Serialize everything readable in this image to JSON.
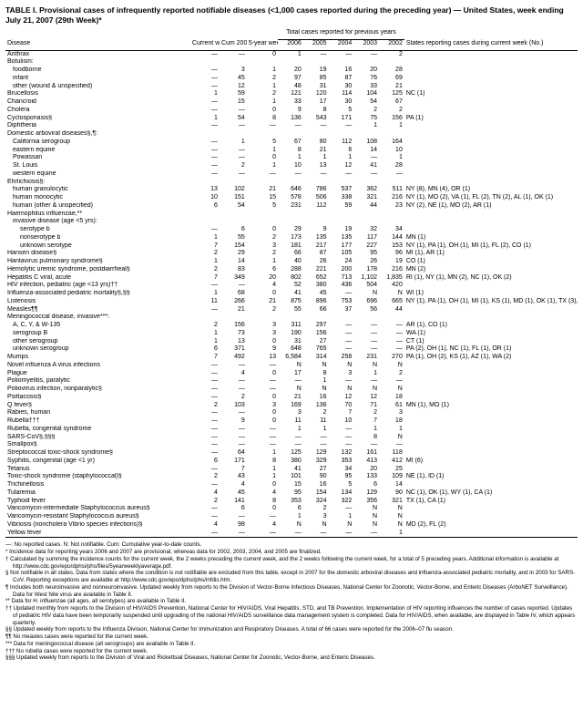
{
  "title": "TABLE I. Provisional cases of infrequently reported notifiable diseases (<1,000 cases reported during the preceding year) — United States, week ending July 21, 2007 (29th Week)*",
  "headers": {
    "disease": "Disease",
    "current_week": "Current week",
    "cum_2007": "Cum 2007",
    "avg": "5-year weekly average†",
    "totals_group": "Total cases reported for previous years",
    "y2006": "2006",
    "y2005": "2005",
    "y2004": "2004",
    "y2003": "2003",
    "y2002": "2002",
    "states": "States reporting cases during current week (No.)"
  },
  "rows": [
    {
      "d": "Anthrax",
      "i": 0,
      "cw": "—",
      "cum": "—",
      "avg": "0",
      "y6": "1",
      "y5": "—",
      "y4": "—",
      "y3": "—",
      "y2": "2",
      "s": ""
    },
    {
      "d": "Botulism:",
      "i": 0,
      "cw": "",
      "cum": "",
      "avg": "",
      "y6": "",
      "y5": "",
      "y4": "",
      "y3": "",
      "y2": "",
      "s": ""
    },
    {
      "d": "foodborne",
      "i": 1,
      "cw": "—",
      "cum": "3",
      "avg": "1",
      "y6": "20",
      "y5": "19",
      "y4": "16",
      "y3": "20",
      "y2": "28",
      "s": ""
    },
    {
      "d": "infant",
      "i": 1,
      "cw": "—",
      "cum": "45",
      "avg": "2",
      "y6": "97",
      "y5": "85",
      "y4": "87",
      "y3": "76",
      "y2": "69",
      "s": ""
    },
    {
      "d": "other (wound & unspecified)",
      "i": 1,
      "cw": "—",
      "cum": "12",
      "avg": "1",
      "y6": "48",
      "y5": "31",
      "y4": "30",
      "y3": "33",
      "y2": "21",
      "s": ""
    },
    {
      "d": "Brucellosis",
      "i": 0,
      "cw": "1",
      "cum": "59",
      "avg": "2",
      "y6": "121",
      "y5": "120",
      "y4": "114",
      "y3": "104",
      "y2": "125",
      "s": "NC (1)"
    },
    {
      "d": "Chancroid",
      "i": 0,
      "cw": "—",
      "cum": "15",
      "avg": "1",
      "y6": "33",
      "y5": "17",
      "y4": "30",
      "y3": "54",
      "y2": "67",
      "s": ""
    },
    {
      "d": "Cholera",
      "i": 0,
      "cw": "—",
      "cum": "—",
      "avg": "0",
      "y6": "9",
      "y5": "8",
      "y4": "5",
      "y3": "2",
      "y2": "2",
      "s": ""
    },
    {
      "d": "Cyclosporiasis§",
      "i": 0,
      "cw": "1",
      "cum": "54",
      "avg": "8",
      "y6": "136",
      "y5": "543",
      "y4": "171",
      "y3": "75",
      "y2": "156",
      "s": "PA (1)"
    },
    {
      "d": "Diphtheria",
      "i": 0,
      "cw": "—",
      "cum": "—",
      "avg": "—",
      "y6": "—",
      "y5": "—",
      "y4": "—",
      "y3": "1",
      "y2": "1",
      "s": ""
    },
    {
      "d": "Domestic arboviral diseases§,¶:",
      "i": 0,
      "cw": "",
      "cum": "",
      "avg": "",
      "y6": "",
      "y5": "",
      "y4": "",
      "y3": "",
      "y2": "",
      "s": ""
    },
    {
      "d": "California serogroup",
      "i": 1,
      "cw": "—",
      "cum": "1",
      "avg": "5",
      "y6": "67",
      "y5": "80",
      "y4": "112",
      "y3": "108",
      "y2": "164",
      "s": ""
    },
    {
      "d": "eastern equine",
      "i": 1,
      "cw": "—",
      "cum": "—",
      "avg": "1",
      "y6": "8",
      "y5": "21",
      "y4": "6",
      "y3": "14",
      "y2": "10",
      "s": ""
    },
    {
      "d": "Powassan",
      "i": 1,
      "cw": "—",
      "cum": "—",
      "avg": "0",
      "y6": "1",
      "y5": "1",
      "y4": "1",
      "y3": "—",
      "y2": "1",
      "s": ""
    },
    {
      "d": "St. Louis",
      "i": 1,
      "cw": "—",
      "cum": "2",
      "avg": "1",
      "y6": "10",
      "y5": "13",
      "y4": "12",
      "y3": "41",
      "y2": "28",
      "s": ""
    },
    {
      "d": "western equine",
      "i": 1,
      "cw": "—",
      "cum": "—",
      "avg": "—",
      "y6": "—",
      "y5": "—",
      "y4": "—",
      "y3": "—",
      "y2": "—",
      "s": ""
    },
    {
      "d": "Ehrlichiosis§:",
      "i": 0,
      "cw": "",
      "cum": "",
      "avg": "",
      "y6": "",
      "y5": "",
      "y4": "",
      "y3": "",
      "y2": "",
      "s": ""
    },
    {
      "d": "human granulocytic",
      "i": 1,
      "cw": "13",
      "cum": "102",
      "avg": "21",
      "y6": "646",
      "y5": "786",
      "y4": "537",
      "y3": "362",
      "y2": "511",
      "s": "NY (8), MN (4), OR (1)"
    },
    {
      "d": "human monocytic",
      "i": 1,
      "cw": "10",
      "cum": "151",
      "avg": "15",
      "y6": "578",
      "y5": "506",
      "y4": "338",
      "y3": "321",
      "y2": "216",
      "s": "NY (1), MO (2), VA (1), FL (2), TN (2), AL (1), OK (1)"
    },
    {
      "d": "human (other & unspecified)",
      "i": 1,
      "cw": "6",
      "cum": "54",
      "avg": "5",
      "y6": "231",
      "y5": "112",
      "y4": "59",
      "y3": "44",
      "y2": "23",
      "s": "NY (2), NE (1), MO (2), AR (1)"
    },
    {
      "d": "Haemophilus influenzae,**",
      "i": 0,
      "cw": "",
      "cum": "",
      "avg": "",
      "y6": "",
      "y5": "",
      "y4": "",
      "y3": "",
      "y2": "",
      "s": ""
    },
    {
      "d": "invasive disease (age <5 yrs):",
      "i": 1,
      "cw": "",
      "cum": "",
      "avg": "",
      "y6": "",
      "y5": "",
      "y4": "",
      "y3": "",
      "y2": "",
      "s": ""
    },
    {
      "d": "serotype b",
      "i": 2,
      "cw": "—",
      "cum": "6",
      "avg": "0",
      "y6": "29",
      "y5": "9",
      "y4": "19",
      "y3": "32",
      "y2": "34",
      "s": ""
    },
    {
      "d": "nonserotype b",
      "i": 2,
      "cw": "1",
      "cum": "55",
      "avg": "2",
      "y6": "173",
      "y5": "135",
      "y4": "135",
      "y3": "117",
      "y2": "144",
      "s": "MN (1)"
    },
    {
      "d": "unknown serotype",
      "i": 2,
      "cw": "7",
      "cum": "154",
      "avg": "3",
      "y6": "181",
      "y5": "217",
      "y4": "177",
      "y3": "227",
      "y2": "153",
      "s": "NY (1), PA (1), OH (1), MI (1), FL (2), CO (1)"
    },
    {
      "d": "Hansen disease§",
      "i": 0,
      "cw": "2",
      "cum": "29",
      "avg": "2",
      "y6": "66",
      "y5": "87",
      "y4": "105",
      "y3": "95",
      "y2": "96",
      "s": "MI (1), AR (1)"
    },
    {
      "d": "Hantavirus pulmonary syndrome§",
      "i": 0,
      "cw": "1",
      "cum": "14",
      "avg": "1",
      "y6": "40",
      "y5": "26",
      "y4": "24",
      "y3": "26",
      "y2": "19",
      "s": "CO (1)"
    },
    {
      "d": "Hemolytic uremic syndrome, postdiarrheal§",
      "i": 0,
      "cw": "2",
      "cum": "83",
      "avg": "6",
      "y6": "288",
      "y5": "221",
      "y4": "200",
      "y3": "178",
      "y2": "216",
      "s": "MN (2)"
    },
    {
      "d": "Hepatitis C viral, acute",
      "i": 0,
      "cw": "7",
      "cum": "349",
      "avg": "20",
      "y6": "802",
      "y5": "652",
      "y4": "713",
      "y3": "1,102",
      "y2": "1,835",
      "s": "RI (1), NY (1), MN (2), NC (1), OK (2)"
    },
    {
      "d": "HIV infection, pediatric (age <13 yrs)††",
      "i": 0,
      "cw": "—",
      "cum": "—",
      "avg": "4",
      "y6": "52",
      "y5": "380",
      "y4": "436",
      "y3": "504",
      "y2": "420",
      "s": ""
    },
    {
      "d": "Influenza-associated pediatric mortality§,§§",
      "i": 0,
      "cw": "1",
      "cum": "68",
      "avg": "0",
      "y6": "41",
      "y5": "45",
      "y4": "—",
      "y3": "N",
      "y2": "N",
      "s": "WI (1)"
    },
    {
      "d": "Listeriosis",
      "i": 0,
      "cw": "11",
      "cum": "266",
      "avg": "21",
      "y6": "875",
      "y5": "896",
      "y4": "753",
      "y3": "696",
      "y2": "665",
      "s": "NY (1), PA (1), OH (1), MI (1), KS (1), MD (1), OK (1), TX (3), AZ (1)"
    },
    {
      "d": "Measles¶¶",
      "i": 0,
      "cw": "—",
      "cum": "21",
      "avg": "2",
      "y6": "55",
      "y5": "66",
      "y4": "37",
      "y3": "56",
      "y2": "44",
      "s": ""
    },
    {
      "d": "Meningococcal disease, invasive***:",
      "i": 0,
      "cw": "",
      "cum": "",
      "avg": "",
      "y6": "",
      "y5": "",
      "y4": "",
      "y3": "",
      "y2": "",
      "s": ""
    },
    {
      "d": "A, C, Y, & W-135",
      "i": 1,
      "cw": "2",
      "cum": "156",
      "avg": "3",
      "y6": "311",
      "y5": "297",
      "y4": "—",
      "y3": "—",
      "y2": "—",
      "s": "AR (1), CO (1)"
    },
    {
      "d": "serogroup B",
      "i": 1,
      "cw": "1",
      "cum": "73",
      "avg": "3",
      "y6": "190",
      "y5": "156",
      "y4": "—",
      "y3": "—",
      "y2": "—",
      "s": "WA (1)"
    },
    {
      "d": "other serogroup",
      "i": 1,
      "cw": "1",
      "cum": "13",
      "avg": "0",
      "y6": "31",
      "y5": "27",
      "y4": "—",
      "y3": "—",
      "y2": "—",
      "s": "CT (1)"
    },
    {
      "d": "unknown serogroup",
      "i": 1,
      "cw": "6",
      "cum": "371",
      "avg": "9",
      "y6": "648",
      "y5": "765",
      "y4": "—",
      "y3": "—",
      "y2": "—",
      "s": "PA (2), OH (1), NC (1), FL (1), OR (1)"
    },
    {
      "d": "Mumps",
      "i": 0,
      "cw": "7",
      "cum": "492",
      "avg": "13",
      "y6": "6,584",
      "y5": "314",
      "y4": "258",
      "y3": "231",
      "y2": "270",
      "s": "PA (1), OH (2), KS (1), AZ (1), WA (2)"
    },
    {
      "d": "Novel influenza A virus infections",
      "i": 0,
      "cw": "—",
      "cum": "—",
      "avg": "—",
      "y6": "N",
      "y5": "N",
      "y4": "N",
      "y3": "N",
      "y2": "N",
      "s": ""
    },
    {
      "d": "Plague",
      "i": 0,
      "cw": "—",
      "cum": "4",
      "avg": "0",
      "y6": "17",
      "y5": "8",
      "y4": "3",
      "y3": "1",
      "y2": "2",
      "s": ""
    },
    {
      "d": "Poliomyelitis, paralytic",
      "i": 0,
      "cw": "—",
      "cum": "—",
      "avg": "—",
      "y6": "—",
      "y5": "1",
      "y4": "—",
      "y3": "—",
      "y2": "—",
      "s": ""
    },
    {
      "d": "Poliovirus infection, nonparalytic§",
      "i": 0,
      "cw": "—",
      "cum": "—",
      "avg": "—",
      "y6": "N",
      "y5": "N",
      "y4": "N",
      "y3": "N",
      "y2": "N",
      "s": ""
    },
    {
      "d": "Psittacosis§",
      "i": 0,
      "cw": "—",
      "cum": "2",
      "avg": "0",
      "y6": "21",
      "y5": "16",
      "y4": "12",
      "y3": "12",
      "y2": "18",
      "s": ""
    },
    {
      "d": "Q fever§",
      "i": 0,
      "cw": "2",
      "cum": "103",
      "avg": "3",
      "y6": "169",
      "y5": "136",
      "y4": "70",
      "y3": "71",
      "y2": "61",
      "s": "MN (1), MO (1)"
    },
    {
      "d": "Rabies, human",
      "i": 0,
      "cw": "—",
      "cum": "—",
      "avg": "0",
      "y6": "3",
      "y5": "2",
      "y4": "7",
      "y3": "2",
      "y2": "3",
      "s": ""
    },
    {
      "d": "Rubella†††",
      "i": 0,
      "cw": "—",
      "cum": "9",
      "avg": "0",
      "y6": "11",
      "y5": "11",
      "y4": "10",
      "y3": "7",
      "y2": "18",
      "s": ""
    },
    {
      "d": "Rubella, congenital syndrome",
      "i": 0,
      "cw": "—",
      "cum": "—",
      "avg": "—",
      "y6": "1",
      "y5": "1",
      "y4": "—",
      "y3": "1",
      "y2": "1",
      "s": ""
    },
    {
      "d": "SARS-CoV§,§§§",
      "i": 0,
      "cw": "—",
      "cum": "—",
      "avg": "—",
      "y6": "—",
      "y5": "—",
      "y4": "—",
      "y3": "8",
      "y2": "N",
      "s": ""
    },
    {
      "d": "Smallpox§",
      "i": 0,
      "cw": "—",
      "cum": "—",
      "avg": "—",
      "y6": "—",
      "y5": "—",
      "y4": "—",
      "y3": "—",
      "y2": "—",
      "s": ""
    },
    {
      "d": "Streptococcal toxic-shock syndrome§",
      "i": 0,
      "cw": "—",
      "cum": "64",
      "avg": "1",
      "y6": "125",
      "y5": "129",
      "y4": "132",
      "y3": "161",
      "y2": "118",
      "s": ""
    },
    {
      "d": "Syphilis, congenital (age <1 yr)",
      "i": 0,
      "cw": "6",
      "cum": "171",
      "avg": "8",
      "y6": "380",
      "y5": "329",
      "y4": "353",
      "y3": "413",
      "y2": "412",
      "s": "MI (6)"
    },
    {
      "d": "Tetanus",
      "i": 0,
      "cw": "—",
      "cum": "7",
      "avg": "1",
      "y6": "41",
      "y5": "27",
      "y4": "34",
      "y3": "20",
      "y2": "25",
      "s": ""
    },
    {
      "d": "Toxic-shock syndrome (staphylococcal)§",
      "i": 0,
      "cw": "2",
      "cum": "43",
      "avg": "1",
      "y6": "101",
      "y5": "90",
      "y4": "95",
      "y3": "133",
      "y2": "109",
      "s": "NE (1), ID (1)"
    },
    {
      "d": "Trichinellosis",
      "i": 0,
      "cw": "—",
      "cum": "4",
      "avg": "0",
      "y6": "15",
      "y5": "16",
      "y4": "5",
      "y3": "6",
      "y2": "14",
      "s": ""
    },
    {
      "d": "Tularemia",
      "i": 0,
      "cw": "4",
      "cum": "45",
      "avg": "4",
      "y6": "95",
      "y5": "154",
      "y4": "134",
      "y3": "129",
      "y2": "90",
      "s": "NC (1), OK (1), WY (1), CA (1)"
    },
    {
      "d": "Typhoid fever",
      "i": 0,
      "cw": "2",
      "cum": "141",
      "avg": "8",
      "y6": "353",
      "y5": "324",
      "y4": "322",
      "y3": "356",
      "y2": "321",
      "s": "TX (1), CA (1)"
    },
    {
      "d": "Vancomycin-intermediate Staphylococcus aureus§",
      "i": 0,
      "cw": "—",
      "cum": "6",
      "avg": "0",
      "y6": "6",
      "y5": "2",
      "y4": "—",
      "y3": "N",
      "y2": "N",
      "s": ""
    },
    {
      "d": "Vancomycin-resistant Staphylococcus aureus§",
      "i": 0,
      "cw": "—",
      "cum": "—",
      "avg": "—",
      "y6": "1",
      "y5": "3",
      "y4": "1",
      "y3": "N",
      "y2": "N",
      "s": ""
    },
    {
      "d": "Vibriosis (noncholera Vibrio species infections)§",
      "i": 0,
      "cw": "4",
      "cum": "98",
      "avg": "4",
      "y6": "N",
      "y5": "N",
      "y4": "N",
      "y3": "N",
      "y2": "N",
      "s": "MD (2), FL (2)"
    },
    {
      "d": "Yellow fever",
      "i": 0,
      "cw": "—",
      "cum": "—",
      "avg": "—",
      "y6": "—",
      "y5": "—",
      "y4": "—",
      "y3": "—",
      "y2": "1",
      "s": ""
    }
  ],
  "footnotes": [
    "—: No reported cases.    N: Not notifiable.    Cum: Cumulative year-to-date counts.",
    "* Incidence data for reporting years 2006 and 2007 are provisional, whereas data for 2002, 2003, 2004, and 2005 are finalized.",
    "† Calculated by summing the incidence counts for the current week, the 2 weeks preceding the current week, and the 2 weeks following the current week, for a total of 5 preceding years. Additional information is available at http://www.cdc.gov/epo/dphsi/phs/files/5yearweeklyaverage.pdf.",
    "§ Not notifiable in all states. Data from states where the condition is not notifiable are excluded from this table, except in 2007 for the domestic arboviral diseases and influenza-associated pediatric mortality, and in 2003 for SARS-CoV. Reporting exceptions are available at http://www.cdc.gov/epo/dphsi/phs/infdis.htm.",
    "¶ Includes both neuroinvasive and nonneuroinvasive. Updated weekly from reports to the Division of Vector-Borne Infectious Diseases, National Center for Zoonotic, Vector-Borne, and Enteric Diseases (ArboNET Surveillance). Data for West Nile virus are available in Table II.",
    "** Data for H. influenzae (all ages, all serotypes) are available in Table II.",
    "†† Updated monthly from reports to the Division of HIV/AIDS Prevention, National Center for HIV/AIDS, Viral Hepatitis, STD, and TB Prevention. Implementation of HIV reporting influences the number of cases reported. Updates of pediatric HIV data have been temporarily suspended until upgrading of the national HIV/AIDS surveillance data management system is completed. Data for HIV/AIDS, when available, are displayed in Table IV, which appears quarterly.",
    "§§ Updated weekly from reports to the Influenza Division, National Center for Immunization and Respiratory Diseases. A total of 66 cases were reported for the 2006–07 flu season.",
    "¶¶ No measles cases were reported for the current week.",
    "*** Data for meningococcal disease (all serogroups) are available in Table II.",
    "††† No rubella cases were reported for the current week.",
    "§§§ Updated weekly from reports to the Division of Viral and Rickettsial Diseases, National Center for Zoonotic, Vector-Borne, and Enteric Diseases."
  ]
}
